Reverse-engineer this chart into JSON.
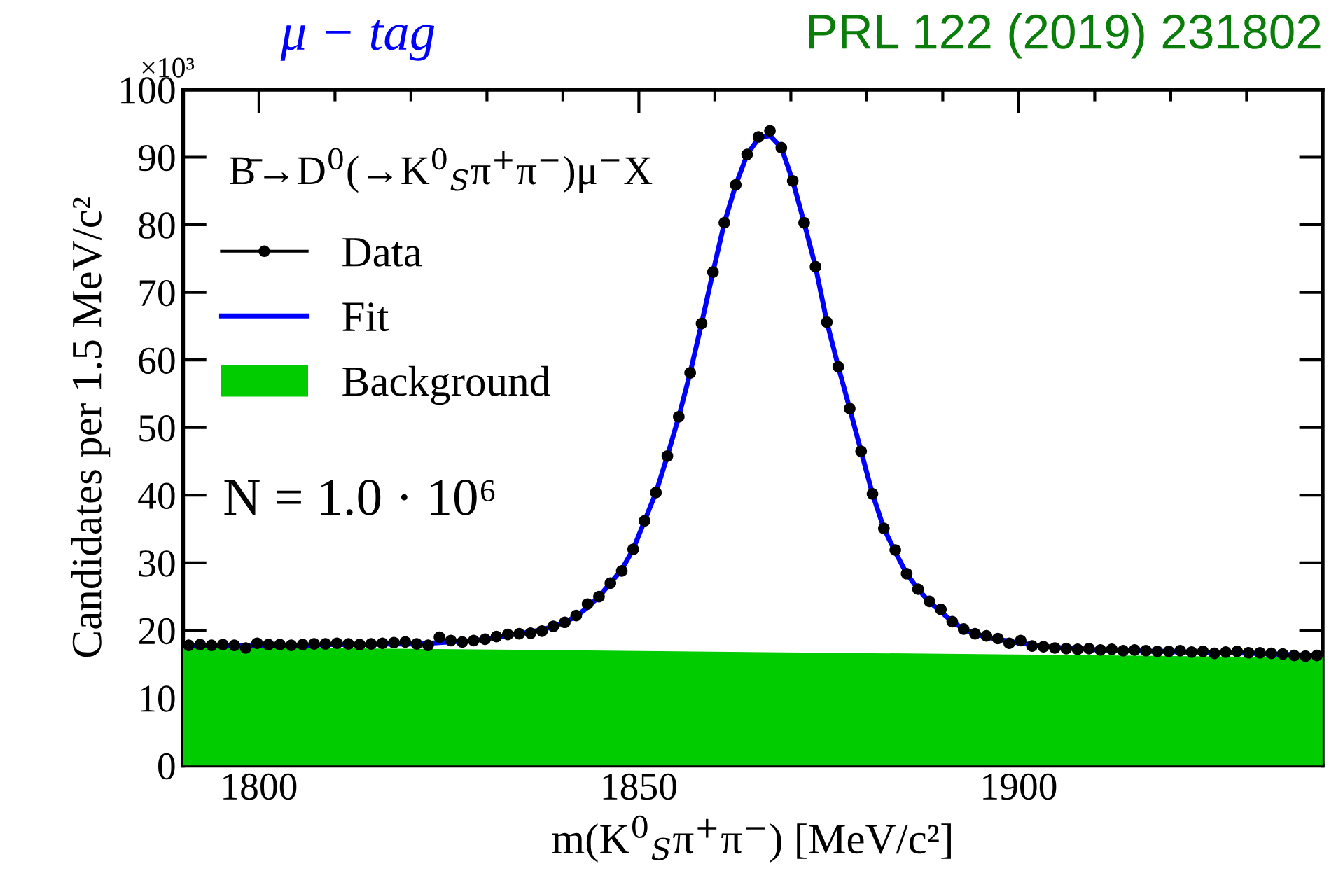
{
  "chart_data": {
    "type": "scatter",
    "title": "PRL 122 (2019) 231802",
    "subtitle": "μ − tag",
    "xlabel": "m(K$^{0}$$_{S}$π$^{+}$π$^{−}$) [MeV/c²]",
    "ylabel": "Candidates per 1.5 MeV/c²",
    "annotations": [
      "×10³",
      "B̄→D$^{0}$(→K$^{0}$$_{S}$π$^{+}$π$^{−}$)μ$^{−}$X",
      "N = 1.0 · 10⁶"
    ],
    "x": [
      1790.75,
      1792.25,
      1793.75,
      1795.25,
      1796.75,
      1798.25,
      1799.75,
      1801.25,
      1802.75,
      1804.25,
      1805.75,
      1807.25,
      1808.75,
      1810.25,
      1811.75,
      1813.25,
      1814.75,
      1816.25,
      1817.75,
      1819.25,
      1820.75,
      1822.25,
      1823.75,
      1825.25,
      1826.75,
      1828.25,
      1829.75,
      1831.25,
      1832.75,
      1834.25,
      1835.75,
      1837.25,
      1838.75,
      1840.25,
      1841.75,
      1843.25,
      1844.75,
      1846.25,
      1847.75,
      1849.25,
      1850.75,
      1852.25,
      1853.75,
      1855.25,
      1856.75,
      1858.25,
      1859.75,
      1861.25,
      1862.75,
      1864.25,
      1865.75,
      1867.25,
      1868.75,
      1870.25,
      1871.75,
      1873.25,
      1874.75,
      1876.25,
      1877.75,
      1879.25,
      1880.75,
      1882.25,
      1883.75,
      1885.25,
      1886.75,
      1888.25,
      1889.75,
      1891.25,
      1892.75,
      1894.25,
      1895.75,
      1897.25,
      1898.75,
      1900.25,
      1901.75,
      1903.25,
      1904.75,
      1906.25,
      1907.75,
      1909.25,
      1910.75,
      1912.25,
      1913.75,
      1915.25,
      1916.75,
      1918.25,
      1919.75,
      1921.25,
      1922.75,
      1924.25,
      1925.75,
      1927.25,
      1928.75,
      1930.25,
      1931.75,
      1933.25,
      1934.75,
      1936.25,
      1937.75,
      1939.25
    ],
    "series": [
      {
        "name": "Data",
        "color": "#000000",
        "marker": "circle",
        "values": [
          17.8,
          17.9,
          17.8,
          17.9,
          17.8,
          17.4,
          18.1,
          17.9,
          17.9,
          17.8,
          17.9,
          18.0,
          18.0,
          18.1,
          18.0,
          17.9,
          18.0,
          18.1,
          18.2,
          18.3,
          18.0,
          17.8,
          19.0,
          18.5,
          18.3,
          18.5,
          18.7,
          19.1,
          19.4,
          19.5,
          19.6,
          19.9,
          20.6,
          21.2,
          22.2,
          23.9,
          25.0,
          27.0,
          28.8,
          32.0,
          36.2,
          40.4,
          45.8,
          51.6,
          58.1,
          65.4,
          73.0,
          80.3,
          85.9,
          90.4,
          93.0,
          93.9,
          91.4,
          86.5,
          80.3,
          73.8,
          65.6,
          59.0,
          52.8,
          46.5,
          40.2,
          35.1,
          31.9,
          28.4,
          26.1,
          24.3,
          23.1,
          21.3,
          20.2,
          19.5,
          19.2,
          18.8,
          18.1,
          18.5,
          17.7,
          17.6,
          17.4,
          17.3,
          17.2,
          17.3,
          17.1,
          17.2,
          17.0,
          17.1,
          17.0,
          16.9,
          16.9,
          17.0,
          16.8,
          16.9,
          16.6,
          16.8,
          16.9,
          16.7,
          16.7,
          16.6,
          16.5,
          16.3,
          16.2,
          16.3
        ]
      },
      {
        "name": "Fit",
        "type": "line",
        "color": "#0000ff",
        "line_style": "solid",
        "values": [
          17.7,
          17.7,
          17.7,
          17.7,
          17.7,
          17.8,
          17.8,
          17.8,
          17.8,
          17.8,
          17.8,
          17.8,
          17.9,
          17.9,
          17.9,
          17.9,
          17.9,
          18.0,
          18.0,
          18.0,
          18.0,
          18.1,
          18.2,
          18.3,
          18.4,
          18.5,
          18.7,
          19.0,
          19.3,
          19.5,
          19.8,
          20.1,
          20.6,
          21.2,
          22.1,
          23.4,
          25.0,
          27.0,
          29.0,
          32.0,
          36.2,
          40.4,
          45.8,
          51.6,
          58.1,
          65.4,
          73.0,
          80.3,
          85.9,
          90.4,
          92.8,
          93.2,
          91.4,
          86.5,
          80.3,
          73.8,
          65.6,
          59.0,
          52.8,
          46.5,
          40.2,
          35.1,
          31.6,
          28.4,
          26.1,
          24.2,
          22.8,
          21.3,
          20.2,
          19.5,
          19.0,
          18.7,
          18.4,
          18.1,
          17.9,
          17.7,
          17.5,
          17.4,
          17.3,
          17.2,
          17.1,
          17.1,
          17.0,
          17.0,
          16.9,
          16.9,
          16.9,
          16.8,
          16.8,
          16.8,
          16.7,
          16.7,
          16.7,
          16.6,
          16.6,
          16.5,
          16.5,
          16.4,
          16.4,
          16.3
        ]
      },
      {
        "name": "Background",
        "type": "area",
        "color": "#00cc00",
        "x": [
          1790,
          1940
        ],
        "values": [
          17.6,
          16.0
        ]
      }
    ],
    "xlim": [
      1790,
      1940
    ],
    "xticks": [
      1800,
      1850,
      1900,
      {
        "value": 1810,
        "label": null
      },
      {
        "value": 1820,
        "label": null
      },
      {
        "value": 1830,
        "label": null
      },
      {
        "value": 1840,
        "label": null
      },
      {
        "value": 1860,
        "label": null
      },
      {
        "value": 1870,
        "label": null
      },
      {
        "value": 1880,
        "label": null
      },
      {
        "value": 1890,
        "label": null
      },
      {
        "value": 1910,
        "label": null
      },
      {
        "value": 1920,
        "label": null
      },
      {
        "value": 1930,
        "label": null
      }
    ],
    "ylim": [
      0,
      100
    ],
    "yticks": [
      0,
      10,
      20,
      30,
      40,
      50,
      60,
      70,
      80,
      90,
      100
    ],
    "grid": false,
    "legend": "top left"
  }
}
